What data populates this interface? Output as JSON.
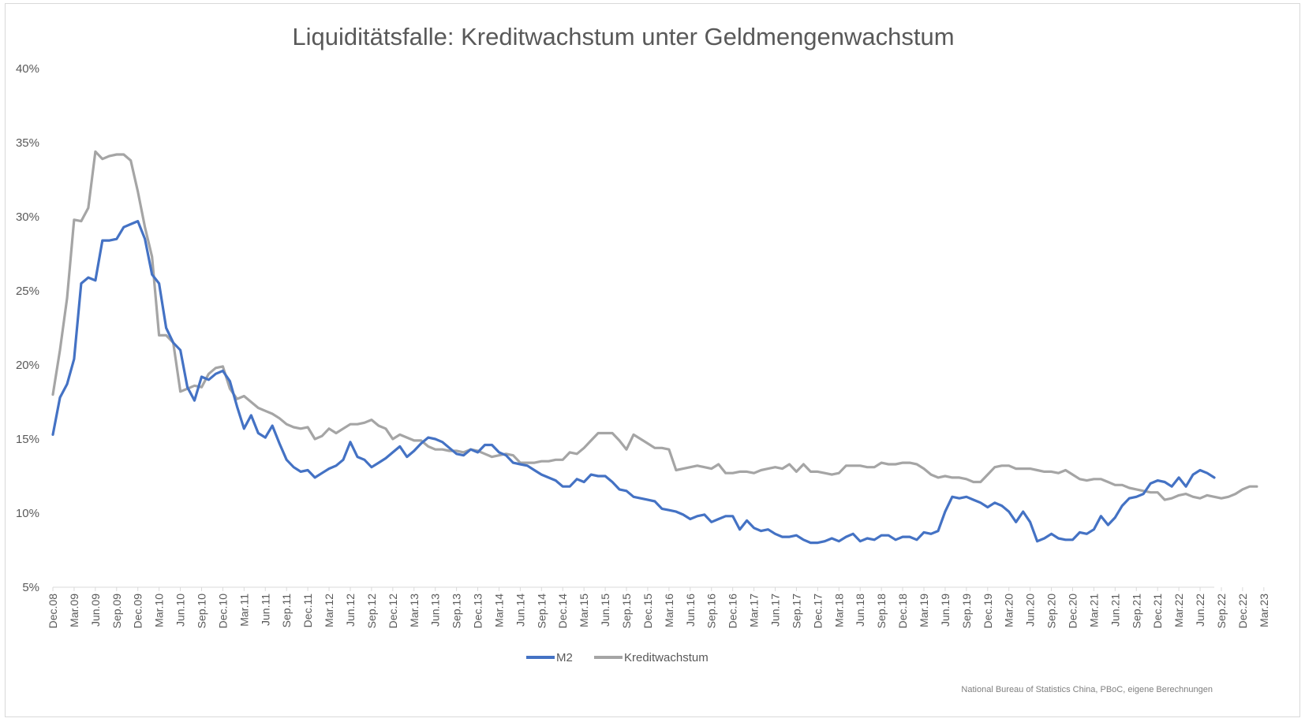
{
  "chart_data": {
    "type": "line",
    "title": "Liquiditätsfalle: Kreditwachstum unter Geldmengenwachstum",
    "source": "National Bureau of Statistics China, PBoC, eigene Berechnungen",
    "xlabel": "",
    "ylabel": "",
    "ylim": [
      5,
      40
    ],
    "yticks": [
      5,
      10,
      15,
      20,
      25,
      30,
      35,
      40
    ],
    "ytick_labels": [
      "5%",
      "10%",
      "15%",
      "20%",
      "25%",
      "30%",
      "35%",
      "40%"
    ],
    "x_start": "Dec.08",
    "x_end": "Apr.23",
    "xtick_labels": [
      "Dec.08",
      "Mar.09",
      "Jun.09",
      "Sep.09",
      "Dec.09",
      "Mar.10",
      "Jun.10",
      "Sep.10",
      "Dec.10",
      "Mar.11",
      "Jun.11",
      "Sep.11",
      "Dec.11",
      "Mar.12",
      "Jun.12",
      "Sep.12",
      "Dec.12",
      "Mar.13",
      "Jun.13",
      "Sep.13",
      "Dec.13",
      "Mar.14",
      "Jun.14",
      "Sep.14",
      "Dec.14",
      "Mar.15",
      "Jun.15",
      "Sep.15",
      "Dec.15",
      "Mar.16",
      "Jun.16",
      "Sep.16",
      "Dec.16",
      "Mar.17",
      "Jun.17",
      "Sep.17",
      "Dec.17",
      "Mar.18",
      "Jun.18",
      "Sep.18",
      "Dec.18",
      "Mar.19",
      "Jun.19",
      "Sep.19",
      "Dec.19",
      "Mar.20",
      "Jun.20",
      "Sep.20",
      "Dec.20",
      "Mar.21",
      "Jun.21",
      "Sep.21",
      "Dec.21",
      "Mar.22",
      "Jun.22",
      "Sep.22",
      "Dec.22",
      "Mar.23"
    ],
    "grid": false,
    "legend_position": "bottom",
    "series": [
      {
        "name": "M2",
        "color": "#4472c4",
        "values": [
          15.3,
          17.8,
          18.7,
          20.4,
          25.5,
          25.9,
          25.7,
          28.4,
          28.4,
          28.5,
          29.3,
          29.5,
          29.7,
          28.5,
          26.1,
          25.5,
          22.5,
          21.5,
          21.0,
          18.5,
          17.6,
          19.2,
          19.0,
          19.4,
          19.6,
          18.9,
          17.2,
          15.7,
          16.6,
          15.4,
          15.1,
          15.9,
          14.7,
          13.6,
          13.1,
          12.8,
          12.9,
          12.4,
          12.7,
          13.0,
          13.2,
          13.6,
          14.8,
          13.8,
          13.6,
          13.1,
          13.4,
          13.7,
          14.1,
          14.5,
          13.8,
          14.2,
          14.7,
          15.1,
          15.0,
          14.8,
          14.4,
          14.0,
          13.9,
          14.3,
          14.1,
          14.6,
          14.6,
          14.1,
          13.9,
          13.4,
          13.3,
          13.2,
          12.9,
          12.6,
          12.4,
          12.2,
          11.8,
          11.8,
          12.3,
          12.1,
          12.6,
          12.5,
          12.5,
          12.1,
          11.6,
          11.5,
          11.1,
          11.0,
          10.9,
          10.8,
          10.3,
          10.2,
          10.1,
          9.9,
          9.6,
          9.8,
          9.9,
          9.4,
          9.6,
          9.8,
          9.8,
          8.9,
          9.5,
          9.0,
          8.8,
          8.9,
          8.6,
          8.4,
          8.4,
          8.5,
          8.2,
          8.0,
          8.0,
          8.1,
          8.3,
          8.1,
          8.4,
          8.6,
          8.1,
          8.3,
          8.2,
          8.5,
          8.5,
          8.2,
          8.4,
          8.4,
          8.2,
          8.7,
          8.6,
          8.8,
          10.1,
          11.1,
          11.0,
          11.1,
          10.9,
          10.7,
          10.4,
          10.7,
          10.5,
          10.1,
          9.4,
          10.1,
          9.4,
          8.1,
          8.3,
          8.6,
          8.3,
          8.2,
          8.2,
          8.7,
          8.6,
          8.9,
          9.8,
          9.2,
          9.7,
          10.5,
          11.0,
          11.1,
          11.3,
          12.0,
          12.2,
          12.1,
          11.8,
          12.4,
          11.8,
          12.6,
          12.9,
          12.7,
          12.4
        ],
        "notes": ""
      },
      {
        "name": "Kreditwachstum",
        "color": "#a5a5a5",
        "values": [
          18.0,
          21.0,
          24.5,
          29.8,
          29.7,
          30.6,
          34.4,
          33.9,
          34.1,
          34.2,
          34.2,
          33.8,
          31.7,
          29.3,
          27.3,
          22.0,
          22.0,
          21.5,
          18.2,
          18.4,
          18.6,
          18.5,
          19.4,
          19.8,
          19.9,
          18.4,
          17.7,
          17.9,
          17.5,
          17.1,
          16.9,
          16.7,
          16.4,
          16.0,
          15.8,
          15.7,
          15.8,
          15.0,
          15.2,
          15.7,
          15.4,
          15.7,
          16.0,
          16.0,
          16.1,
          16.3,
          15.9,
          15.7,
          15.0,
          15.3,
          15.1,
          14.9,
          14.9,
          14.5,
          14.3,
          14.3,
          14.2,
          14.2,
          14.1,
          14.3,
          14.2,
          14.0,
          13.8,
          13.9,
          14.0,
          13.9,
          13.4,
          13.4,
          13.4,
          13.5,
          13.5,
          13.6,
          13.6,
          14.1,
          14.0,
          14.4,
          14.9,
          15.4,
          15.4,
          15.4,
          14.9,
          14.3,
          15.3,
          15.0,
          14.7,
          14.4,
          14.4,
          14.3,
          12.9,
          13.0,
          13.1,
          13.2,
          13.1,
          13.0,
          13.3,
          12.7,
          12.7,
          12.8,
          12.8,
          12.7,
          12.9,
          13.0,
          13.1,
          13.0,
          13.3,
          12.8,
          13.3,
          12.8,
          12.8,
          12.7,
          12.6,
          12.7,
          13.2,
          13.2,
          13.2,
          13.1,
          13.1,
          13.4,
          13.3,
          13.3,
          13.4,
          13.4,
          13.3,
          13.0,
          12.6,
          12.4,
          12.5,
          12.4,
          12.4,
          12.3,
          12.1,
          12.1,
          12.6,
          13.1,
          13.2,
          13.2,
          13.0,
          13.0,
          13.0,
          12.9,
          12.8,
          12.8,
          12.7,
          12.9,
          12.6,
          12.3,
          12.2,
          12.3,
          12.3,
          12.1,
          11.9,
          11.9,
          11.7,
          11.6,
          11.5,
          11.4,
          11.4,
          10.9,
          11.0,
          11.2,
          11.3,
          11.1,
          11.0,
          11.2,
          11.1,
          11.0,
          11.1,
          11.3,
          11.6,
          11.8,
          11.8
        ]
      }
    ]
  },
  "legend": {
    "m2_label": "M2",
    "credit_label": "Kreditwachstum"
  }
}
